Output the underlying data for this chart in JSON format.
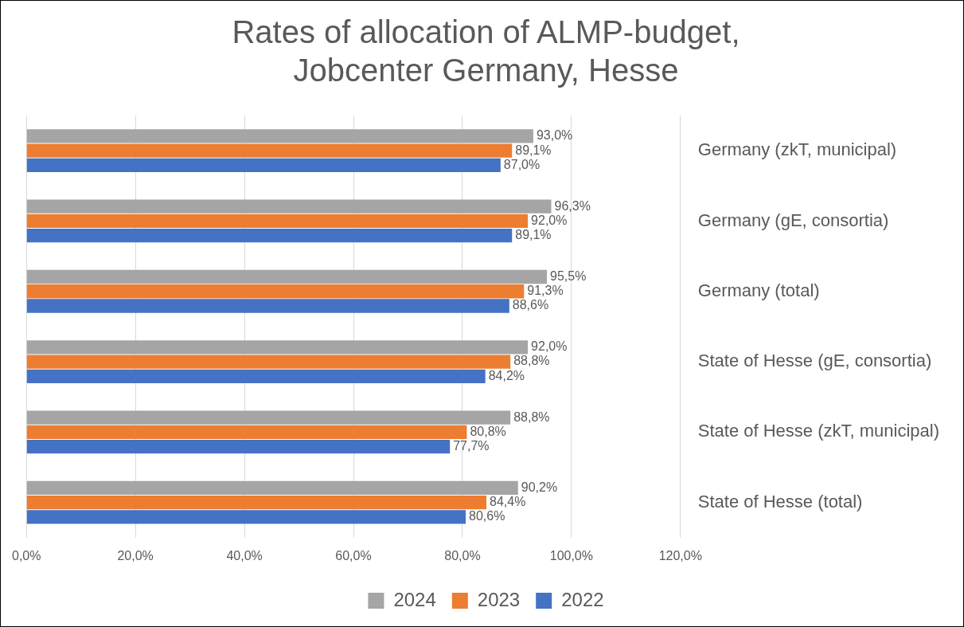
{
  "chart_data": {
    "type": "bar",
    "orientation": "horizontal",
    "title": "Rates of allocation of ALMP-budget,\nJobcenter Germany, Hesse",
    "categories": [
      "Germany (zkT, municipal)",
      "Germany (gE, consortia)",
      "Germany (total)",
      "State of Hesse (gE, consortia)",
      "State of Hesse (zkT, municipal)",
      "State of Hesse (total)"
    ],
    "series": [
      {
        "name": "2024",
        "color": "#a5a5a5",
        "values": [
          93.0,
          96.3,
          95.5,
          92.0,
          88.8,
          90.2
        ],
        "value_labels": [
          "93,0%",
          "96,3%",
          "95,5%",
          "92,0%",
          "88,8%",
          "90,2%"
        ]
      },
      {
        "name": "2023",
        "color": "#ed7d31",
        "values": [
          89.1,
          92.0,
          91.3,
          88.8,
          80.8,
          84.4
        ],
        "value_labels": [
          "89,1%",
          "92,0%",
          "91,3%",
          "88,8%",
          "80,8%",
          "84,4%"
        ]
      },
      {
        "name": "2022",
        "color": "#4472c4",
        "values": [
          87.0,
          89.1,
          88.6,
          84.2,
          77.7,
          80.6
        ],
        "value_labels": [
          "87,0%",
          "89,1%",
          "88,6%",
          "84,2%",
          "77,7%",
          "80,6%"
        ]
      }
    ],
    "xlim": [
      0,
      120
    ],
    "xticks": [
      {
        "value": 0,
        "label": "0,0%"
      },
      {
        "value": 20,
        "label": "20,0%"
      },
      {
        "value": 40,
        "label": "40,0%"
      },
      {
        "value": 60,
        "label": "60,0%"
      },
      {
        "value": 80,
        "label": "80,0%"
      },
      {
        "value": 100,
        "label": "100,0%"
      },
      {
        "value": 120,
        "label": "120,0%"
      }
    ],
    "grid": "x",
    "legend": "bottom"
  }
}
